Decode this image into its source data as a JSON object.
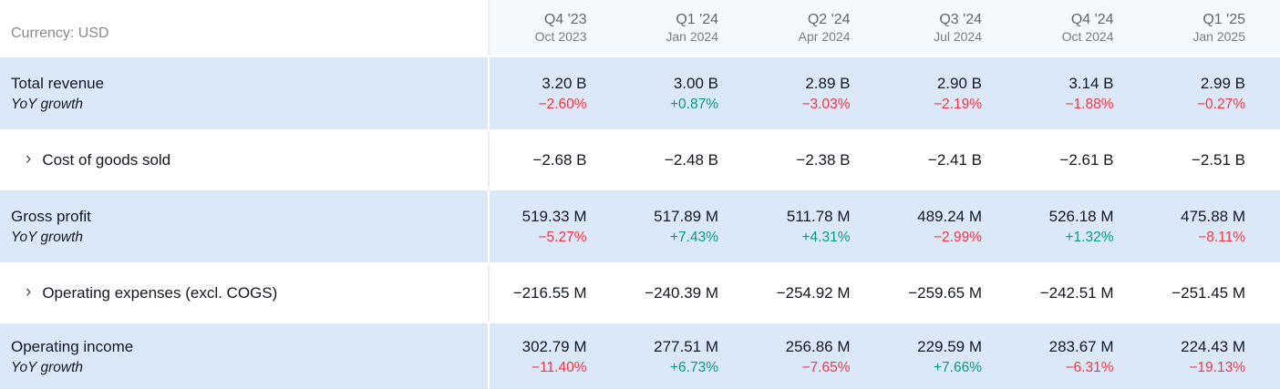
{
  "header": {
    "currency_label": "Currency: USD",
    "columns": [
      {
        "quarter": "Q4 '23",
        "date": "Oct 2023"
      },
      {
        "quarter": "Q1 '24",
        "date": "Jan 2024"
      },
      {
        "quarter": "Q2 '24",
        "date": "Apr 2024"
      },
      {
        "quarter": "Q3 '24",
        "date": "Jul 2024"
      },
      {
        "quarter": "Q4 '24",
        "date": "Oct 2024"
      },
      {
        "quarter": "Q1 '25",
        "date": "Jan 2025"
      }
    ]
  },
  "icons": {
    "chevron": "›"
  },
  "colors": {
    "positive": "#089981",
    "negative": "#f23645",
    "row_highlight": "#dbe8f8",
    "header_band": "#f6f9fc"
  },
  "rows": [
    {
      "label": "Total revenue",
      "sub_label": "YoY growth",
      "expandable": false,
      "highlighted": true,
      "values": [
        "3.20 B",
        "3.00 B",
        "2.89 B",
        "2.90 B",
        "3.14 B",
        "2.99 B"
      ],
      "yoy": [
        {
          "text": "−2.60%",
          "direction": "down"
        },
        {
          "text": "+0.87%",
          "direction": "up"
        },
        {
          "text": "−3.03%",
          "direction": "down"
        },
        {
          "text": "−2.19%",
          "direction": "down"
        },
        {
          "text": "−1.88%",
          "direction": "down"
        },
        {
          "text": "−0.27%",
          "direction": "down"
        }
      ]
    },
    {
      "label": "Cost of goods sold",
      "expandable": true,
      "highlighted": false,
      "values": [
        "−2.68 B",
        "−2.48 B",
        "−2.38 B",
        "−2.41 B",
        "−2.61 B",
        "−2.51 B"
      ]
    },
    {
      "label": "Gross profit",
      "sub_label": "YoY growth",
      "expandable": false,
      "highlighted": true,
      "values": [
        "519.33 M",
        "517.89 M",
        "511.78 M",
        "489.24 M",
        "526.18 M",
        "475.88 M"
      ],
      "yoy": [
        {
          "text": "−5.27%",
          "direction": "down"
        },
        {
          "text": "+7.43%",
          "direction": "up"
        },
        {
          "text": "+4.31%",
          "direction": "up"
        },
        {
          "text": "−2.99%",
          "direction": "down"
        },
        {
          "text": "+1.32%",
          "direction": "up"
        },
        {
          "text": "−8.11%",
          "direction": "down"
        }
      ]
    },
    {
      "label": "Operating expenses (excl. COGS)",
      "expandable": true,
      "highlighted": false,
      "values": [
        "−216.55 M",
        "−240.39 M",
        "−254.92 M",
        "−259.65 M",
        "−242.51 M",
        "−251.45 M"
      ]
    },
    {
      "label": "Operating income",
      "sub_label": "YoY growth",
      "expandable": false,
      "highlighted": true,
      "values": [
        "302.79 M",
        "277.51 M",
        "256.86 M",
        "229.59 M",
        "283.67 M",
        "224.43 M"
      ],
      "yoy": [
        {
          "text": "−11.40%",
          "direction": "down"
        },
        {
          "text": "+6.73%",
          "direction": "up"
        },
        {
          "text": "−7.65%",
          "direction": "down"
        },
        {
          "text": "+7.66%",
          "direction": "up"
        },
        {
          "text": "−6.31%",
          "direction": "down"
        },
        {
          "text": "−19.13%",
          "direction": "down"
        }
      ]
    }
  ],
  "chart_data": {
    "type": "table",
    "categories": [
      "Q4 '23",
      "Q1 '24",
      "Q2 '24",
      "Q3 '24",
      "Q4 '24",
      "Q1 '25"
    ],
    "category_dates": [
      "Oct 2023",
      "Jan 2024",
      "Apr 2024",
      "Jul 2024",
      "Oct 2024",
      "Jan 2025"
    ],
    "unit": "USD millions",
    "series": [
      {
        "name": "Total revenue",
        "values": [
          3200,
          3000,
          2890,
          2900,
          3140,
          2990
        ]
      },
      {
        "name": "Total revenue YoY growth %",
        "values": [
          -2.6,
          0.87,
          -3.03,
          -2.19,
          -1.88,
          -0.27
        ]
      },
      {
        "name": "Cost of goods sold",
        "values": [
          -2680,
          -2480,
          -2380,
          -2410,
          -2610,
          -2510
        ]
      },
      {
        "name": "Gross profit",
        "values": [
          519.33,
          517.89,
          511.78,
          489.24,
          526.18,
          475.88
        ]
      },
      {
        "name": "Gross profit YoY growth %",
        "values": [
          -5.27,
          7.43,
          4.31,
          -2.99,
          1.32,
          -8.11
        ]
      },
      {
        "name": "Operating expenses (excl. COGS)",
        "values": [
          -216.55,
          -240.39,
          -254.92,
          -259.65,
          -242.51,
          -251.45
        ]
      },
      {
        "name": "Operating income",
        "values": [
          302.79,
          277.51,
          256.86,
          229.59,
          283.67,
          224.43
        ]
      },
      {
        "name": "Operating income YoY growth %",
        "values": [
          -11.4,
          6.73,
          -7.65,
          7.66,
          -6.31,
          -19.13
        ]
      }
    ]
  }
}
